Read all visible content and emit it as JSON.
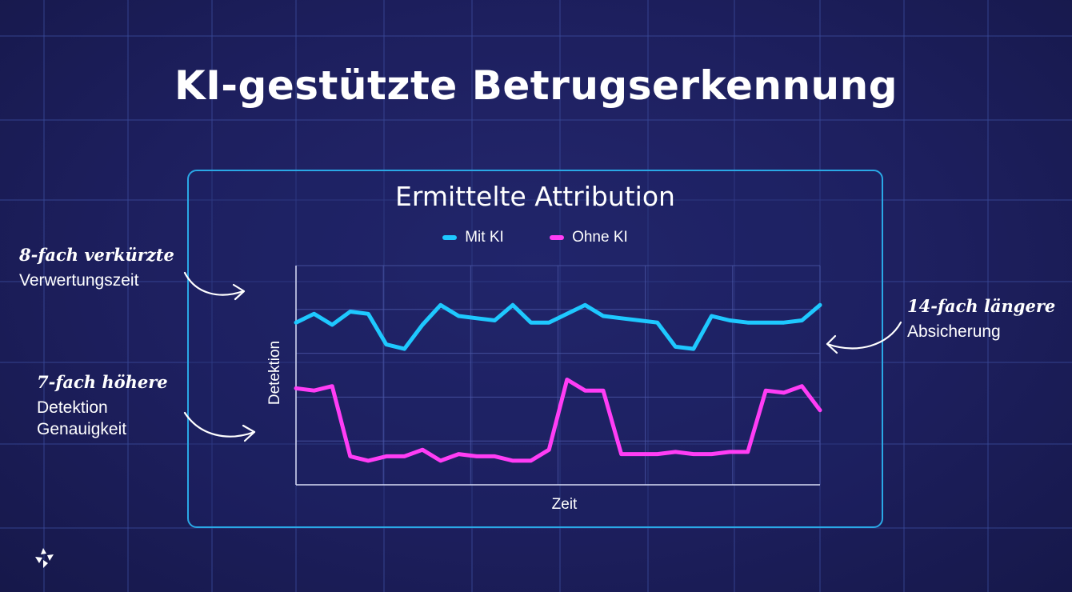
{
  "title": "KI-gestützte Betrugserkennung",
  "annotations": {
    "left_top": {
      "highlight": "8-fach verkürzte",
      "lines": [
        "Verwertungszeit"
      ]
    },
    "left_bottom": {
      "highlight": "7-fach höhere",
      "lines": [
        "Detektion",
        "Genauigkeit"
      ]
    },
    "right": {
      "highlight": "14-fach längere",
      "lines": [
        "Absicherung"
      ]
    }
  },
  "colors": {
    "accent_border": "#2aa8e6",
    "series_mit_ki": "#1ec8ff",
    "series_ohne_ki": "#ff3df5"
  },
  "chart_data": {
    "type": "line",
    "title": "Ermittelte Attribution",
    "xlabel": "Zeit",
    "ylabel": "Detektion",
    "grid": true,
    "legend_position": "top",
    "ylim": [
      0,
      100
    ],
    "x": [
      0,
      1,
      2,
      3,
      4,
      5,
      6,
      7,
      8,
      9,
      10,
      11,
      12,
      13,
      14,
      15,
      16,
      17,
      18,
      19,
      20,
      21,
      22,
      23,
      24,
      25,
      26,
      27,
      28,
      29
    ],
    "series": [
      {
        "name": "Mit KI",
        "values": [
          74,
          78,
          73,
          79,
          78,
          64,
          62,
          73,
          82,
          77,
          76,
          75,
          82,
          74,
          74,
          78,
          82,
          77,
          76,
          75,
          74,
          63,
          62,
          77,
          75,
          74,
          74,
          74,
          75,
          82
        ]
      },
      {
        "name": "Ohne KI",
        "values": [
          44,
          43,
          45,
          13,
          11,
          13,
          13,
          16,
          11,
          14,
          13,
          13,
          11,
          11,
          16,
          48,
          43,
          43,
          14,
          14,
          14,
          15,
          14,
          14,
          15,
          15,
          43,
          42,
          45,
          34
        ]
      }
    ]
  }
}
